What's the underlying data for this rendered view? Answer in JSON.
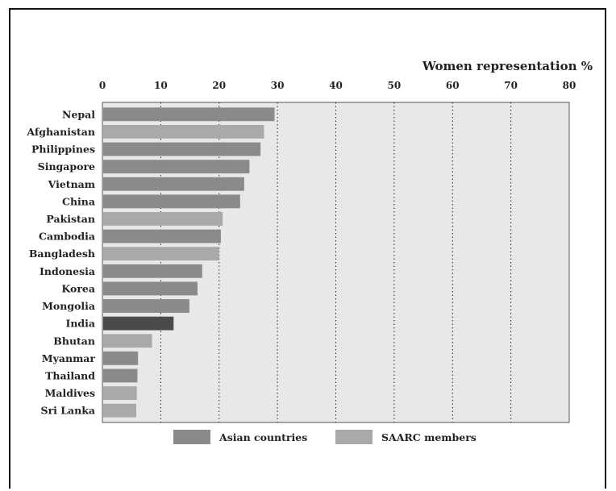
{
  "chart_data": {
    "type": "bar",
    "orientation": "horizontal",
    "title": "",
    "xlabel": "Women representation %",
    "ylabel": "",
    "xlim": [
      0,
      80
    ],
    "xticks": [
      0,
      10,
      20,
      30,
      40,
      50,
      60,
      70,
      80
    ],
    "grid": "vertical dotted",
    "legend_position": "bottom",
    "categories": [
      "Nepal",
      "Afghanistan",
      "Philippines",
      "Singapore",
      "Vietnam",
      "China",
      "Pakistan",
      "Cambodia",
      "Bangladesh",
      "Indonesia",
      "Korea",
      "Mongolia",
      "India",
      "Bhutan",
      "Myanmar",
      "Thailand",
      "Maldives",
      "Sri Lanka"
    ],
    "values": [
      29.5,
      27.7,
      27.1,
      25.2,
      24.3,
      23.6,
      20.6,
      20.3,
      20.0,
      17.1,
      16.3,
      14.9,
      12.2,
      8.5,
      6.1,
      6.0,
      5.9,
      5.8
    ],
    "groups": [
      "asian",
      "saarc",
      "asian",
      "asian",
      "asian",
      "asian",
      "saarc",
      "asian",
      "saarc",
      "asian",
      "asian",
      "asian",
      "highlight",
      "saarc",
      "asian",
      "asian",
      "saarc",
      "saarc"
    ],
    "series": [
      {
        "name": "Asian countries",
        "key": "asian",
        "color": "#8a8a8a"
      },
      {
        "name": "SAARC members",
        "key": "saarc",
        "color": "#a9a9a9"
      }
    ],
    "colors": {
      "highlight": "#4a4a4a",
      "plot_background": "#e8e8e8",
      "grid": "#222222"
    }
  }
}
